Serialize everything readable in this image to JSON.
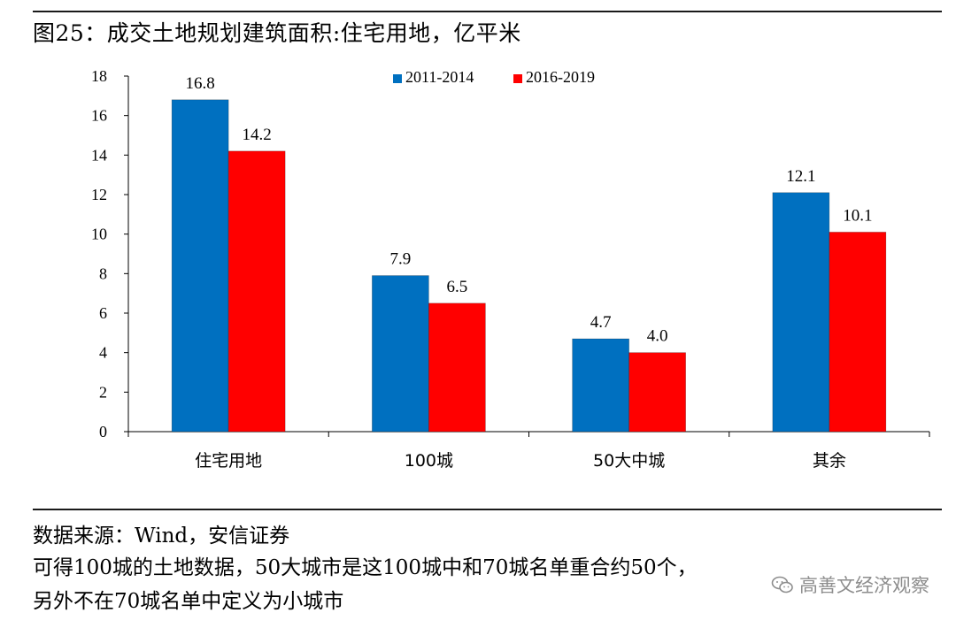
{
  "header": {
    "title": "图25：成交土地规划建筑面积:住宅用地，亿平米"
  },
  "chart_data": {
    "type": "bar",
    "categories": [
      "住宅用地",
      "100城",
      "50大中城",
      "其余"
    ],
    "series": [
      {
        "name": "2011-2014",
        "values": [
          16.8,
          7.9,
          4.7,
          12.1
        ],
        "color": "#0070c0"
      },
      {
        "name": "2016-2019",
        "values": [
          14.2,
          6.5,
          4.0,
          10.1
        ],
        "color": "#ff0000"
      }
    ],
    "data_labels": [
      [
        "16.8",
        "7.9",
        "4.7",
        "12.1"
      ],
      [
        "14.2",
        "6.5",
        "4.0",
        "10.1"
      ]
    ],
    "yticks": [
      "0",
      "2",
      "4",
      "6",
      "8",
      "10",
      "12",
      "14",
      "16",
      "18"
    ],
    "ylim": [
      0,
      18
    ],
    "legend": "top-center",
    "grid": false
  },
  "footer": {
    "source": "数据来源：Wind，安信证券",
    "note_line1": "可得100城的土地数据，50大城市是这100城中和70城名单重合约50个，",
    "note_line2": "另外不在70城名单中定义为小城市"
  },
  "watermark": {
    "text": "高善文经济观察",
    "icon": "wechat-icon"
  }
}
